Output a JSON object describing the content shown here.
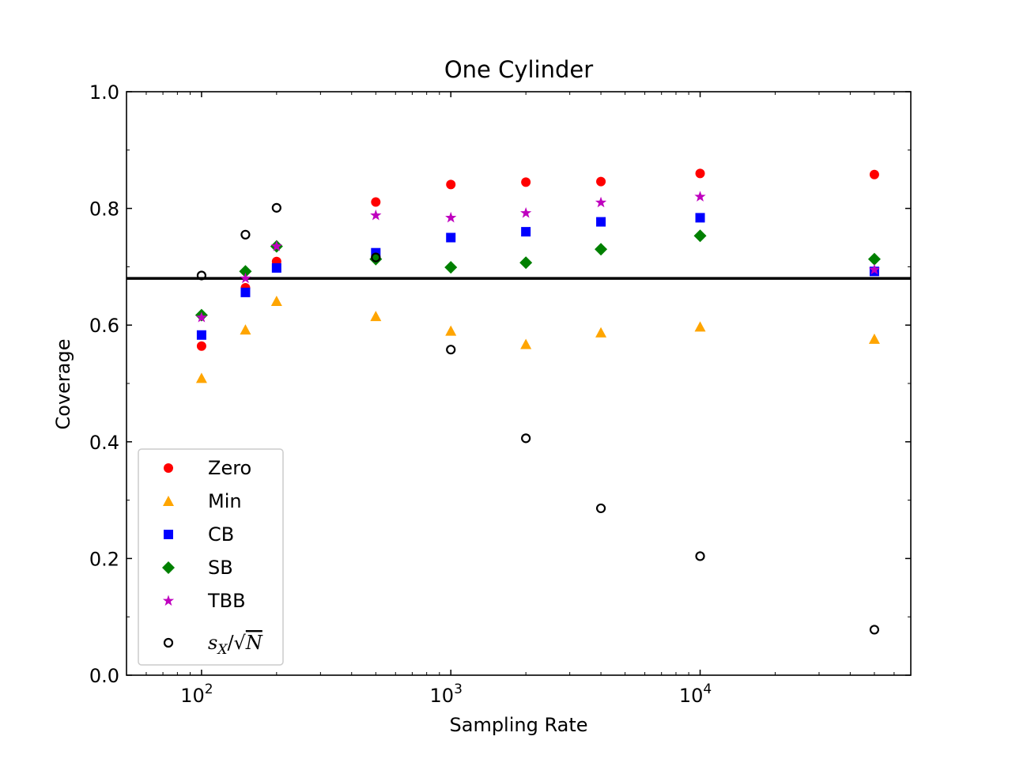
{
  "chart_data": {
    "type": "scatter",
    "title": "One Cylinder",
    "xlabel": "Sampling Rate",
    "ylabel": "Coverage",
    "xscale": "log",
    "xlim": [
      50,
      70000
    ],
    "ylim": [
      0.0,
      1.0
    ],
    "yticks": [
      "0.0",
      "0.2",
      "0.4",
      "0.6",
      "0.8",
      "1.0"
    ],
    "xticks": [
      {
        "base": "10",
        "exp": "2"
      },
      {
        "base": "10",
        "exp": "3"
      },
      {
        "base": "10",
        "exp": "4"
      }
    ],
    "reference_line": {
      "y": 0.68,
      "color": "#000000"
    },
    "legend_position": "lower-left",
    "grid": false,
    "series": [
      {
        "name": "Zero",
        "marker": "circle",
        "color": "#ff0000",
        "x": [
          100,
          150,
          200,
          500,
          1000,
          2000,
          4000,
          10000,
          50000
        ],
        "y": [
          0.564,
          0.664,
          0.709,
          0.811,
          0.841,
          0.845,
          0.846,
          0.86,
          0.858
        ]
      },
      {
        "name": "Min",
        "marker": "triangle",
        "color": "#ffa500",
        "x": [
          100,
          150,
          200,
          500,
          1000,
          2000,
          4000,
          10000,
          50000
        ],
        "y": [
          0.509,
          0.592,
          0.641,
          0.615,
          0.59,
          0.567,
          0.587,
          0.597,
          0.576
        ]
      },
      {
        "name": "CB",
        "marker": "square",
        "color": "#0000ff",
        "x": [
          100,
          150,
          200,
          500,
          1000,
          2000,
          4000,
          10000,
          50000
        ],
        "y": [
          0.583,
          0.656,
          0.698,
          0.724,
          0.75,
          0.76,
          0.777,
          0.784,
          0.692
        ]
      },
      {
        "name": "SB",
        "marker": "diamond",
        "color": "#008000",
        "x": [
          100,
          150,
          200,
          500,
          1000,
          2000,
          4000,
          10000,
          50000
        ],
        "y": [
          0.617,
          0.692,
          0.735,
          0.713,
          0.699,
          0.707,
          0.73,
          0.753,
          0.713
        ]
      },
      {
        "name": "TBB",
        "marker": "star",
        "color": "#bf00bf",
        "x": [
          100,
          150,
          200,
          500,
          1000,
          2000,
          4000,
          10000,
          50000
        ],
        "y": [
          0.613,
          0.68,
          0.735,
          0.788,
          0.784,
          0.792,
          0.81,
          0.82,
          0.695
        ]
      },
      {
        "name": "s_X/√N",
        "marker": "open-circle",
        "color": "#000000",
        "x": [
          100,
          150,
          200,
          500,
          1000,
          2000,
          4000,
          10000,
          50000
        ],
        "y": [
          0.685,
          0.755,
          0.801,
          0.716,
          0.558,
          0.406,
          0.286,
          0.204,
          0.078
        ]
      }
    ]
  },
  "legend": {
    "items": [
      {
        "label": "Zero"
      },
      {
        "label": "Min"
      },
      {
        "label": "CB"
      },
      {
        "label": "SB"
      },
      {
        "label": "TBB"
      },
      {
        "label_main": "s",
        "label_sub": "X",
        "label_slash": "/",
        "label_sqrt": "√",
        "label_n": "N"
      }
    ]
  }
}
